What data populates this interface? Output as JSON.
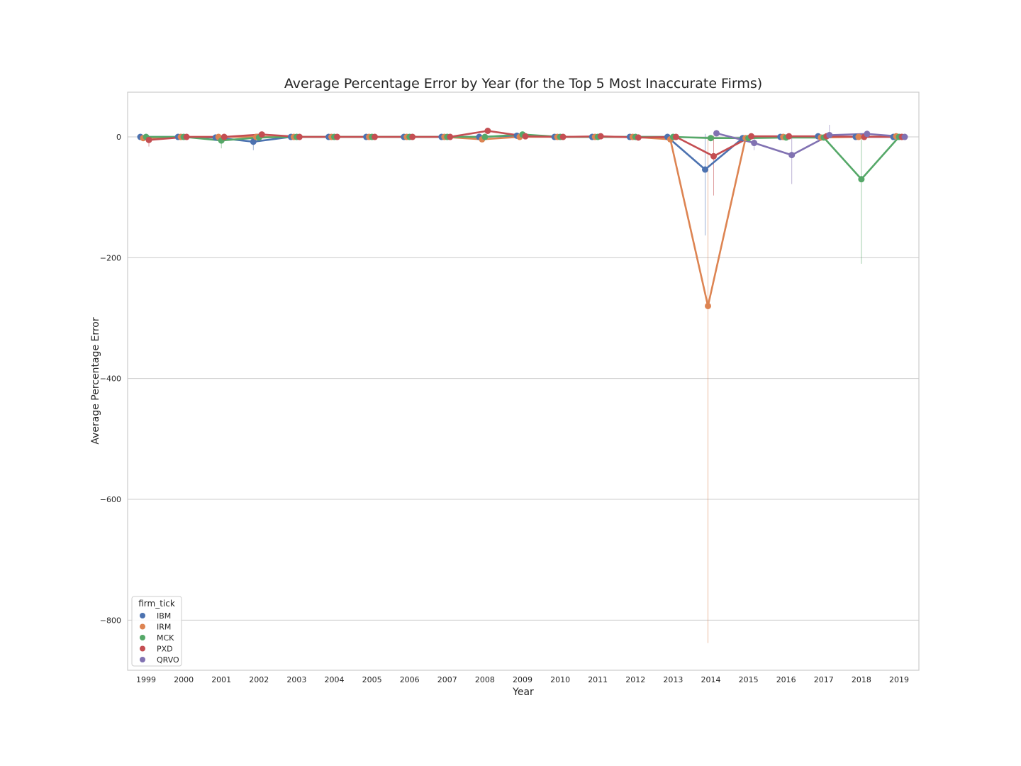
{
  "chart_data": {
    "type": "line",
    "title": "Average Percentage Error by Year (for the Top 5 Most Inaccurate Firms)",
    "xlabel": "Year",
    "ylabel": "Average Percentage Error",
    "categories": [
      "1999",
      "2000",
      "2001",
      "2002",
      "2003",
      "2004",
      "2005",
      "2006",
      "2007",
      "2008",
      "2009",
      "2010",
      "2011",
      "2012",
      "2013",
      "2014",
      "2015",
      "2016",
      "2017",
      "2018",
      "2019"
    ],
    "ylim": [
      -883,
      74
    ],
    "yticks": [
      0,
      -200,
      -400,
      -600,
      -800
    ],
    "grid": "horizontal",
    "legend": {
      "title": "firm_tick",
      "placement": "lower-left"
    },
    "series": [
      {
        "name": "IBM",
        "color": "#4c72b0",
        "values": [
          0,
          0,
          -1,
          -8,
          0,
          0,
          0,
          0,
          0,
          0,
          2,
          0,
          0,
          0,
          0,
          -54,
          -2,
          0,
          1,
          0,
          0
        ],
        "err_low": [
          null,
          null,
          null,
          -22,
          null,
          null,
          null,
          null,
          null,
          null,
          null,
          null,
          null,
          null,
          null,
          -163,
          null,
          null,
          null,
          null,
          null
        ],
        "err_high": [
          null,
          null,
          null,
          3,
          null,
          null,
          null,
          null,
          null,
          null,
          null,
          null,
          null,
          null,
          null,
          5,
          null,
          null,
          null,
          null,
          null
        ]
      },
      {
        "name": "IRM",
        "color": "#dd8452",
        "values": [
          -2,
          0,
          0,
          0,
          0,
          0,
          0,
          0,
          0,
          -4,
          0,
          0,
          0,
          0,
          -4,
          -280,
          -2,
          0,
          -1,
          0,
          1
        ],
        "err_low": [
          null,
          null,
          null,
          null,
          null,
          null,
          null,
          null,
          null,
          null,
          null,
          null,
          null,
          null,
          null,
          -838,
          null,
          null,
          null,
          null,
          null
        ],
        "err_high": [
          null,
          null,
          null,
          null,
          null,
          null,
          null,
          null,
          null,
          null,
          null,
          null,
          null,
          null,
          null,
          -2,
          null,
          null,
          null,
          null,
          null
        ]
      },
      {
        "name": "MCK",
        "color": "#55a868",
        "values": [
          0,
          0,
          -6,
          -1,
          0,
          0,
          0,
          0,
          0,
          0,
          4,
          0,
          0,
          0,
          0,
          -2,
          -2,
          -1,
          -1,
          -70,
          0
        ],
        "err_low": [
          null,
          null,
          -19,
          null,
          null,
          null,
          null,
          null,
          null,
          null,
          null,
          null,
          null,
          null,
          null,
          null,
          null,
          null,
          null,
          -210,
          null
        ],
        "err_high": [
          null,
          null,
          2,
          null,
          null,
          null,
          null,
          null,
          null,
          null,
          null,
          null,
          null,
          null,
          null,
          null,
          null,
          null,
          null,
          2,
          null
        ]
      },
      {
        "name": "PXD",
        "color": "#c44e52",
        "values": [
          -5,
          0,
          0,
          4,
          0,
          0,
          0,
          0,
          0,
          10,
          1,
          0,
          1,
          -1,
          0,
          -32,
          1,
          1,
          1,
          0,
          0
        ],
        "err_low": [
          -16,
          null,
          null,
          null,
          null,
          null,
          null,
          null,
          null,
          null,
          null,
          null,
          null,
          null,
          null,
          -97,
          null,
          null,
          null,
          null,
          null
        ],
        "err_high": [
          2,
          null,
          null,
          null,
          null,
          null,
          null,
          null,
          null,
          31,
          null,
          null,
          null,
          null,
          null,
          2,
          null,
          null,
          null,
          null,
          null
        ]
      },
      {
        "name": "QRVO",
        "color": "#8172b2",
        "values": [
          null,
          null,
          null,
          null,
          null,
          null,
          null,
          null,
          null,
          null,
          null,
          null,
          null,
          null,
          null,
          6,
          -10,
          -30,
          3,
          5,
          0
        ],
        "err_low": [
          null,
          null,
          null,
          null,
          null,
          null,
          null,
          null,
          null,
          null,
          null,
          null,
          null,
          null,
          null,
          null,
          -22,
          -78,
          -2,
          null,
          null
        ],
        "err_high": [
          null,
          null,
          null,
          null,
          null,
          null,
          null,
          null,
          null,
          null,
          null,
          null,
          null,
          null,
          null,
          18,
          2,
          2,
          20,
          null,
          null
        ]
      }
    ]
  }
}
